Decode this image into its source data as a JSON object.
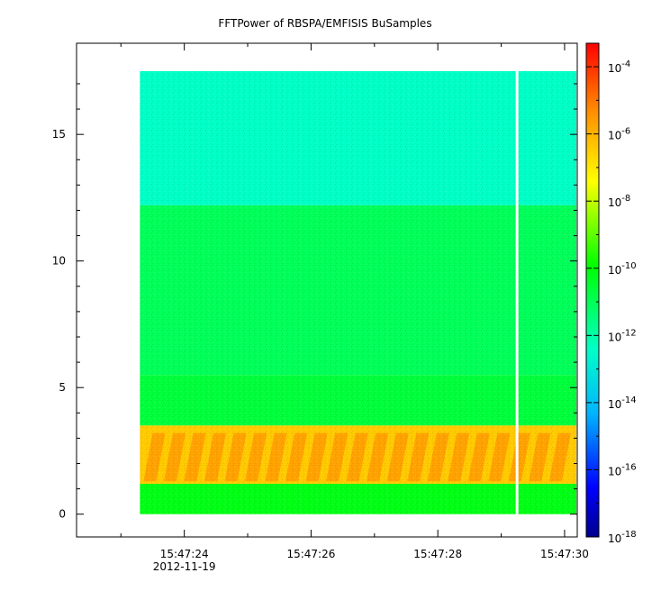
{
  "chart_data": {
    "type": "heatmap",
    "title": "FFTPower of RBSPA/EMFISIS  BuSamples",
    "xlabel": "",
    "ylabel": "",
    "x_tick_labels": [
      "15:47:24",
      "15:47:26",
      "15:47:28",
      "15:47:30"
    ],
    "x_date_label": "2012-11-19",
    "x_ticks_seconds": [
      24,
      26,
      28,
      30
    ],
    "xlim_seconds": [
      22.3,
      30.2
    ],
    "data_x_range_seconds": [
      23.3,
      30.2
    ],
    "gap_at_seconds": 29.25,
    "y_tick_labels": [
      "0",
      "5",
      "10",
      "15"
    ],
    "y_ticks": [
      0,
      5,
      10,
      15
    ],
    "ylim": [
      -0.9,
      18.6
    ],
    "data_y_range": [
      0,
      17.5
    ],
    "colorbar": {
      "scale": "log",
      "range_exponent": [
        -18,
        -3.3
      ],
      "tick_base": "10",
      "tick_exponents": [
        "-4",
        "-6",
        "-8",
        "-10",
        "-12",
        "-14",
        "-16",
        "-18"
      ],
      "colormap_stops": [
        "#0000a0",
        "#0000ff",
        "#00c0ff",
        "#00ffd0",
        "#00ff00",
        "#ffff00",
        "#ff9000",
        "#ff0000"
      ]
    },
    "bands": [
      {
        "y_from": 12.2,
        "y_to": 17.5,
        "level_exponent": -11.6
      },
      {
        "y_from": 5.5,
        "y_to": 12.2,
        "level_exponent": -10.5
      },
      {
        "y_from": 3.5,
        "y_to": 5.5,
        "level_exponent": -10.2
      },
      {
        "y_from": 1.2,
        "y_to": 3.5,
        "level_exponent": -6.5
      },
      {
        "y_from": 0.0,
        "y_to": 1.2,
        "level_exponent": -9.8
      }
    ]
  }
}
